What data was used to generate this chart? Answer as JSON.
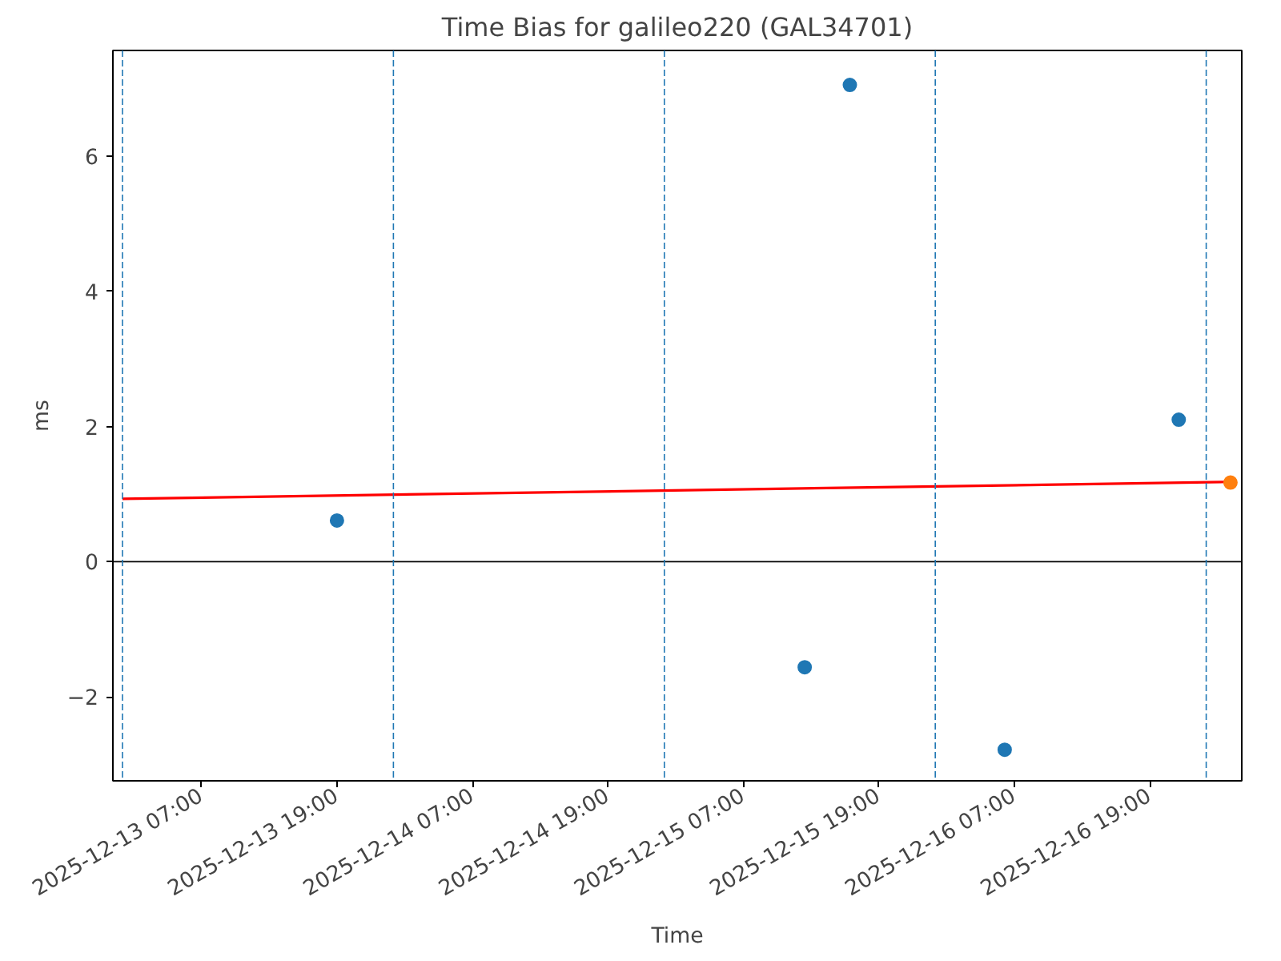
{
  "chart_data": {
    "type": "scatter",
    "title": "Time Bias for galileo220 (GAL34701)",
    "xlabel": "Time",
    "ylabel": "ms",
    "marker": "circle",
    "grid": false,
    "xlim": [
      "2025-12-12T23:09",
      "2025-12-17T03:09"
    ],
    "xticks": [
      {
        "value": "2025-12-13T07:00",
        "label": "2025-12-13 07:00"
      },
      {
        "value": "2025-12-13T19:00",
        "label": "2025-12-13 19:00"
      },
      {
        "value": "2025-12-14T07:00",
        "label": "2025-12-14 07:00"
      },
      {
        "value": "2025-12-14T19:00",
        "label": "2025-12-14 19:00"
      },
      {
        "value": "2025-12-15T07:00",
        "label": "2025-12-15 07:00"
      },
      {
        "value": "2025-12-15T19:00",
        "label": "2025-12-15 19:00"
      },
      {
        "value": "2025-12-16T07:00",
        "label": "2025-12-16 07:00"
      },
      {
        "value": "2025-12-16T19:00",
        "label": "2025-12-16 19:00"
      }
    ],
    "ylim": [
      -3.24,
      7.56
    ],
    "yticks": [
      {
        "value": -2,
        "label": "−2"
      },
      0,
      2,
      4,
      6
    ],
    "series": [
      {
        "color": "#1f77b4",
        "x": [
          "2025-12-13T19:00",
          "2025-12-15T12:26",
          "2025-12-15T16:26",
          "2025-12-16T06:09",
          "2025-12-16T21:34"
        ],
        "values": [
          0.61,
          -1.56,
          7.05,
          -2.78,
          2.1
        ]
      },
      {
        "type": "line",
        "marker": "none",
        "color": "#ff0000",
        "x": [
          "2025-12-13T00:00",
          "2025-12-17T02:09"
        ],
        "values": [
          0.93,
          1.18
        ]
      },
      {
        "color": "#ff7f0e",
        "x": [
          "2025-12-17T02:09"
        ],
        "values": [
          1.17
        ]
      }
    ],
    "ref_lines": [
      {
        "axis": "y",
        "value": 0,
        "color": "#000000",
        "line_style": "solid"
      },
      {
        "axis": "x",
        "value": "2025-12-13T00:00",
        "color": "#1f77b4",
        "line_style": "dashed"
      },
      {
        "axis": "x",
        "value": "2025-12-14T00:00",
        "color": "#1f77b4",
        "line_style": "dashed"
      },
      {
        "axis": "x",
        "value": "2025-12-15T00:00",
        "color": "#1f77b4",
        "line_style": "dashed"
      },
      {
        "axis": "x",
        "value": "2025-12-16T00:00",
        "color": "#1f77b4",
        "line_style": "dashed"
      },
      {
        "axis": "x",
        "value": "2025-12-17T00:00",
        "color": "#1f77b4",
        "line_style": "dashed"
      }
    ]
  }
}
